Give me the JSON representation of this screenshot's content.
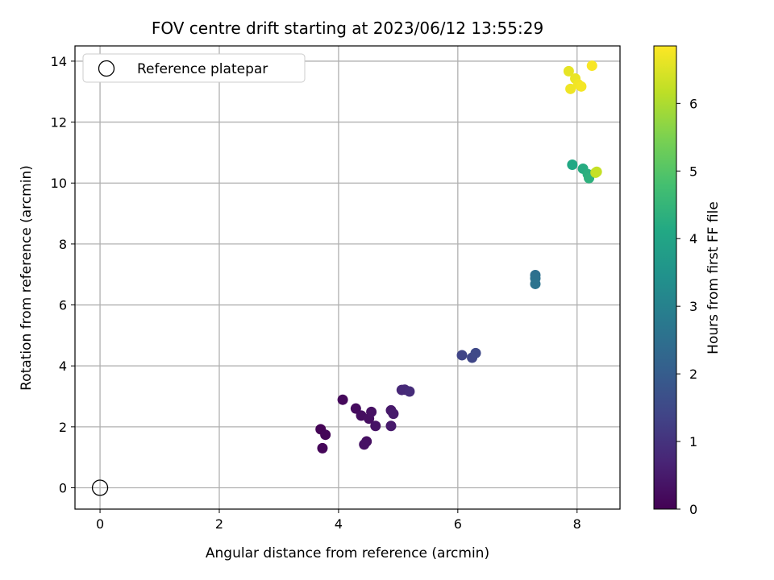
{
  "chart_data": {
    "type": "scatter",
    "title": "FOV centre drift starting at 2023/06/12 13:55:29",
    "xlabel": "Angular distance from reference (arcmin)",
    "ylabel": "Rotation from reference (arcmin)",
    "xlim": [
      -0.42,
      8.72
    ],
    "ylim": [
      -0.7,
      14.5
    ],
    "xticks": [
      0,
      2,
      4,
      6,
      8
    ],
    "yticks": [
      0,
      2,
      4,
      6,
      8,
      10,
      12,
      14
    ],
    "grid": true,
    "legend": {
      "placement": "top-left",
      "entries": [
        {
          "label": "Reference platepar",
          "marker": "open-circle"
        }
      ]
    },
    "reference_point": {
      "x": 0,
      "y": 0
    },
    "colorbar": {
      "label": "Hours from first FF file",
      "range": [
        0,
        6.85
      ],
      "ticks": [
        0,
        1,
        2,
        3,
        4,
        5,
        6
      ],
      "colormap": "viridis"
    },
    "points": [
      {
        "x": 3.7,
        "y": 1.92,
        "t": 0.05
      },
      {
        "x": 3.78,
        "y": 1.74,
        "t": 0.08
      },
      {
        "x": 3.73,
        "y": 1.3,
        "t": 0.1
      },
      {
        "x": 4.07,
        "y": 2.89,
        "t": 0.15
      },
      {
        "x": 4.29,
        "y": 2.6,
        "t": 0.2
      },
      {
        "x": 4.38,
        "y": 2.37,
        "t": 0.25
      },
      {
        "x": 4.51,
        "y": 2.27,
        "t": 0.28
      },
      {
        "x": 4.55,
        "y": 2.49,
        "t": 0.32
      },
      {
        "x": 4.62,
        "y": 2.03,
        "t": 0.36
      },
      {
        "x": 4.47,
        "y": 1.52,
        "t": 0.3
      },
      {
        "x": 4.43,
        "y": 1.42,
        "t": 0.33
      },
      {
        "x": 4.88,
        "y": 2.54,
        "t": 0.45
      },
      {
        "x": 4.92,
        "y": 2.43,
        "t": 0.5
      },
      {
        "x": 4.88,
        "y": 2.03,
        "t": 0.48
      },
      {
        "x": 5.06,
        "y": 3.21,
        "t": 0.75
      },
      {
        "x": 5.11,
        "y": 3.22,
        "t": 0.8
      },
      {
        "x": 5.19,
        "y": 3.16,
        "t": 0.85
      },
      {
        "x": 6.07,
        "y": 4.35,
        "t": 1.4
      },
      {
        "x": 6.24,
        "y": 4.27,
        "t": 1.45
      },
      {
        "x": 6.3,
        "y": 4.42,
        "t": 1.5
      },
      {
        "x": 7.3,
        "y": 6.98,
        "t": 2.5
      },
      {
        "x": 7.3,
        "y": 6.87,
        "t": 2.55
      },
      {
        "x": 7.3,
        "y": 6.69,
        "t": 2.6
      },
      {
        "x": 7.92,
        "y": 10.6,
        "t": 4.1
      },
      {
        "x": 8.1,
        "y": 10.47,
        "t": 4.2
      },
      {
        "x": 8.18,
        "y": 10.29,
        "t": 4.3
      },
      {
        "x": 8.2,
        "y": 10.16,
        "t": 4.35
      },
      {
        "x": 8.31,
        "y": 10.34,
        "t": 6.2
      },
      {
        "x": 8.33,
        "y": 10.37,
        "t": 6.25
      },
      {
        "x": 7.86,
        "y": 13.67,
        "t": 6.6
      },
      {
        "x": 7.97,
        "y": 13.43,
        "t": 6.65
      },
      {
        "x": 7.89,
        "y": 13.09,
        "t": 6.7
      },
      {
        "x": 8.02,
        "y": 13.24,
        "t": 6.72
      },
      {
        "x": 8.07,
        "y": 13.17,
        "t": 6.75
      },
      {
        "x": 8.25,
        "y": 13.85,
        "t": 6.8
      }
    ]
  }
}
